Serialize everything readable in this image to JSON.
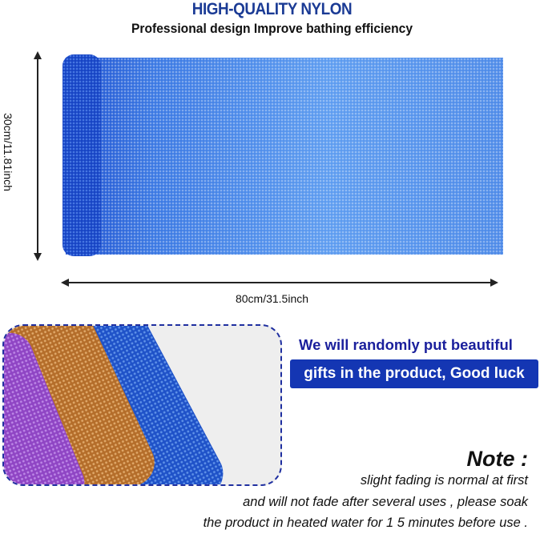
{
  "header": {
    "title": "HIGH-QUALITY NYLON",
    "subtitle": "Professional design Improve bathing efficiency"
  },
  "dimensions": {
    "height_label": "30cm/11.81inch",
    "width_label": "80cm/31.5inch"
  },
  "gift": {
    "line1": "We will randomly put beautiful",
    "line2": "gifts in the product, Good luck"
  },
  "note": {
    "heading": "Note :",
    "lines": [
      "slight fading is normal at first",
      "and will not fade after several uses , please soak",
      "the product in heated water for 1 5 minutes before use ."
    ]
  },
  "colors": {
    "accent": "#1436b3",
    "title": "#1b3b95",
    "cloth": "#3f7ee0"
  }
}
